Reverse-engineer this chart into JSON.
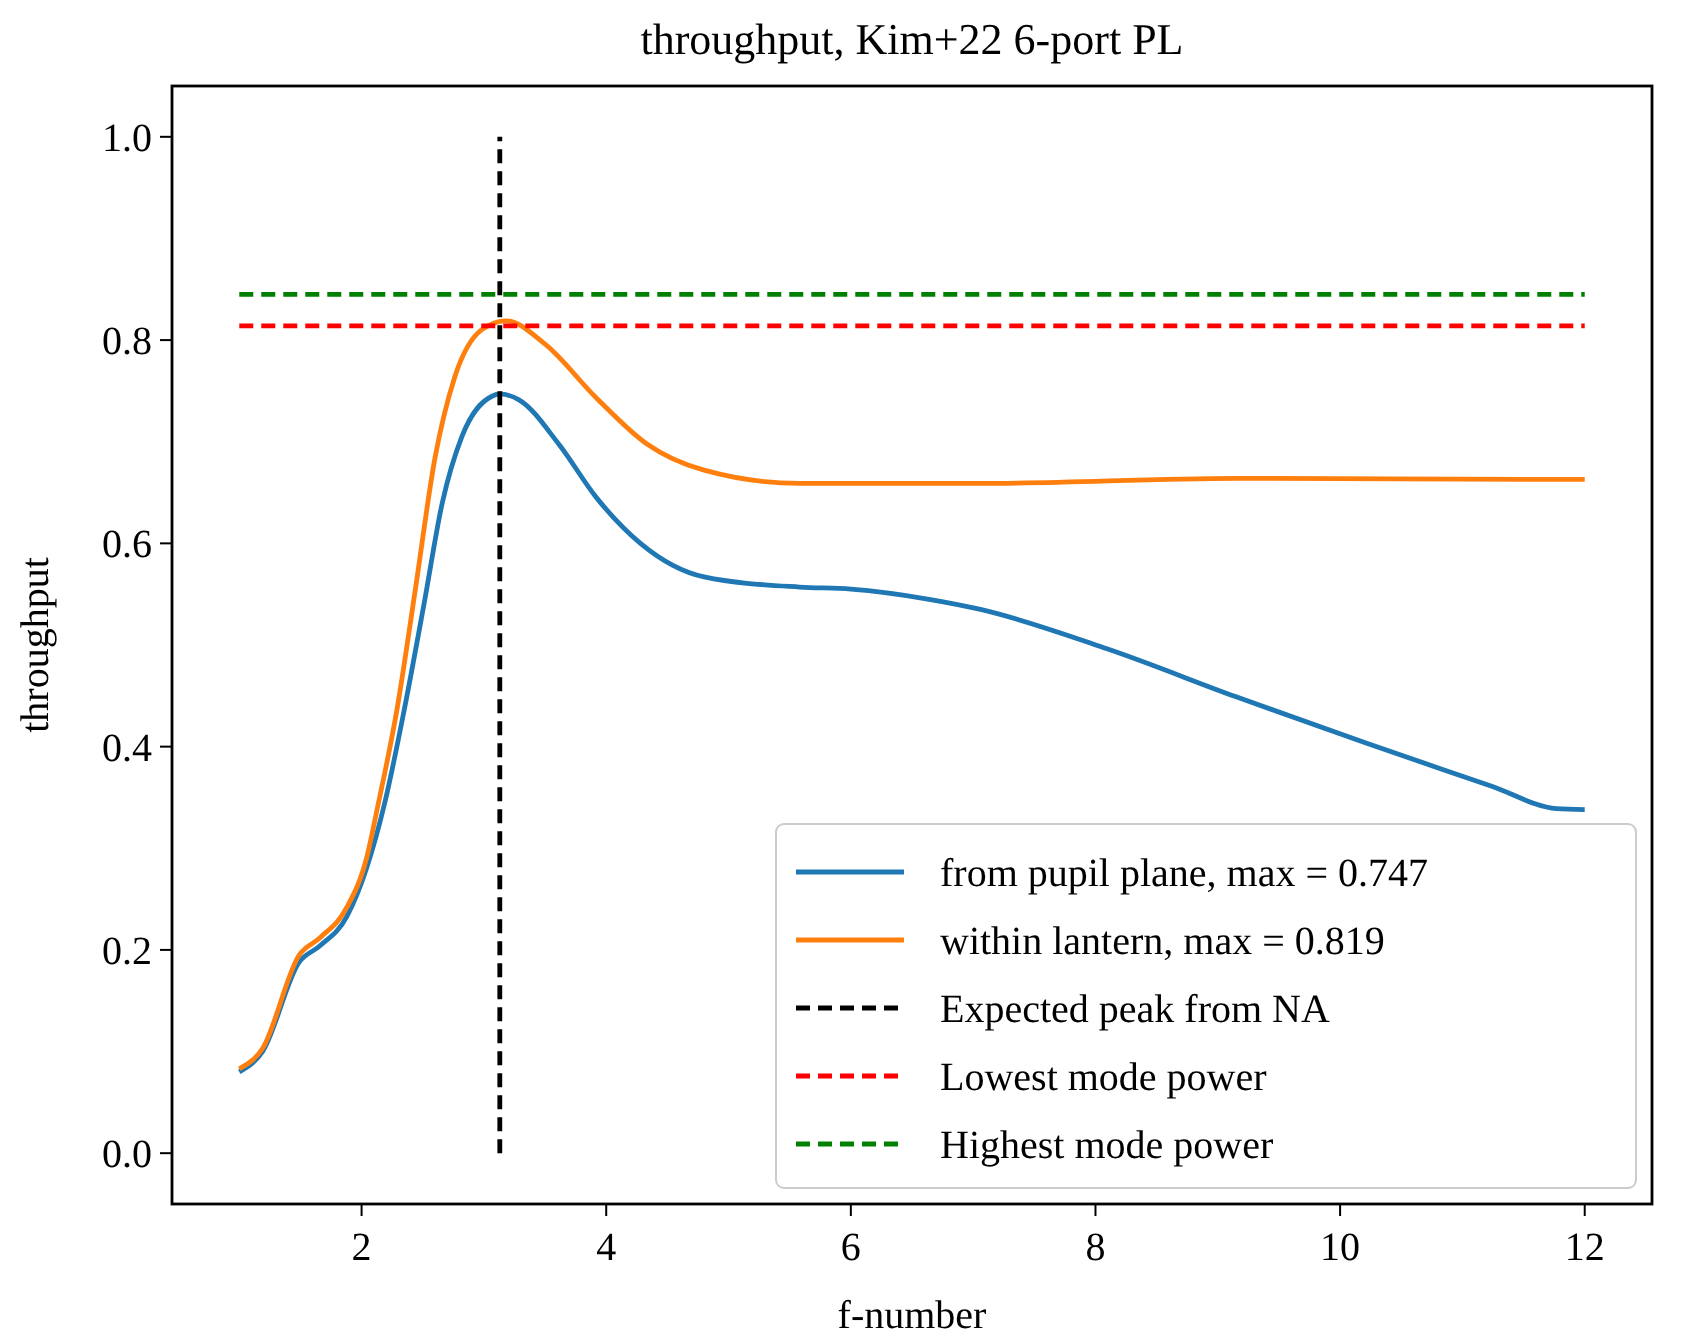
{
  "chart_data": {
    "type": "line",
    "title": "throughput, Kim+22 6-port PL",
    "xlabel": "f-number",
    "ylabel": "throughput",
    "xlim": [
      0.45,
      12.55
    ],
    "ylim": [
      -0.05,
      1.05
    ],
    "xticks": [
      2,
      4,
      6,
      8,
      10,
      12
    ],
    "yticks": [
      {
        "value": 0,
        "label": "0.0"
      },
      {
        "value": 0.2,
        "label": "0.2"
      },
      {
        "value": 0.4,
        "label": "0.4"
      },
      {
        "value": 0.6,
        "label": "0.6"
      },
      {
        "value": 0.8,
        "label": "0.8"
      },
      {
        "value": 1,
        "label": "1.0"
      }
    ],
    "grid": false,
    "legend": "bottom right",
    "line_style": "solid",
    "series": [
      {
        "name": "from pupil plane, max = 0.747",
        "color": "#1f77b4",
        "x": [
          1,
          1.19,
          1.49,
          1.66,
          1.88,
          2.04,
          2.19,
          2.35,
          2.51,
          2.66,
          2.82,
          3.07,
          3.13,
          3.29,
          3.61,
          3.92,
          4.28,
          4.8,
          5.58,
          6,
          6.64,
          7.06,
          8.1,
          9.15,
          10.2,
          11.24,
          11.77,
          12
        ],
        "values": [
          0.08,
          0.1,
          0.188,
          0.204,
          0.233,
          0.28,
          0.345,
          0.437,
          0.54,
          0.64,
          0.705,
          0.745,
          0.747,
          0.741,
          0.698,
          0.645,
          0.6,
          0.567,
          0.557,
          0.555,
          0.545,
          0.535,
          0.496,
          0.449,
          0.404,
          0.361,
          0.339,
          0.338
        ]
      },
      {
        "name": "within lantern, max = 0.819",
        "color": "#ff7f0e",
        "x": [
          1,
          1.19,
          1.49,
          1.66,
          1.88,
          2.04,
          2.13,
          2.29,
          2.44,
          2.6,
          2.76,
          2.98,
          3.18,
          3.5,
          3.92,
          4.33,
          4.8,
          5.58,
          6.64,
          7.06,
          9.15,
          11.77,
          12
        ],
        "values": [
          0.083,
          0.103,
          0.195,
          0.212,
          0.242,
          0.29,
          0.34,
          0.437,
          0.555,
          0.684,
          0.763,
          0.81,
          0.819,
          0.796,
          0.743,
          0.698,
          0.672,
          0.659,
          0.659,
          0.659,
          0.664,
          0.663,
          0.663
        ]
      },
      {
        "name": "Expected peak from NA",
        "color": "#000000",
        "line_style": "dashed",
        "x": [
          3.13,
          3.13
        ],
        "values": [
          0,
          1
        ]
      },
      {
        "name": "Lowest mode power",
        "color": "#ff0000",
        "line_style": "dashed",
        "x": [
          1,
          12
        ],
        "values": [
          0.814,
          0.814
        ]
      },
      {
        "name": "Highest mode power",
        "color": "#008000",
        "line_style": "dashed",
        "x": [
          1,
          12
        ],
        "values": [
          0.845,
          0.845
        ]
      }
    ]
  }
}
